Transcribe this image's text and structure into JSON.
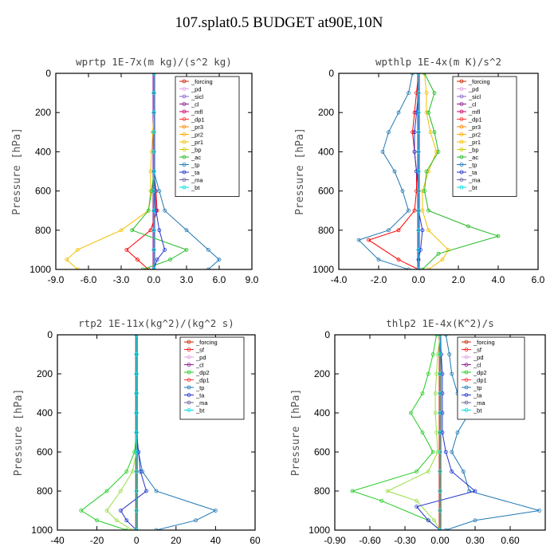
{
  "figure_title": "107.splat0.5  BUDGET at90E,10N",
  "chart_data": [
    {
      "type": "line",
      "title": "wprtp  1E-7x(m kg)/(s^2 kg)",
      "ylabel": "Pressure [hPa]",
      "xlim": [
        -9.0,
        9.0
      ],
      "ylim": [
        0,
        1000
      ],
      "y_inverted": true,
      "x_ticks": [
        "-9.0",
        "-6.0",
        "-3.0",
        "0.0",
        "3.0",
        "6.0",
        "9.0"
      ],
      "y_ticks": [
        "0",
        "200",
        "400",
        "600",
        "800",
        "1000"
      ],
      "legend_position": "top-right",
      "legend": [
        "_forcing",
        "_pd",
        "_sicl",
        "_cl",
        "_mfl",
        "_dp1",
        "_pr3",
        "_pr2",
        "_pr1",
        "_bp",
        "_ac",
        "_tp",
        "_ta",
        "_ma",
        "_bt"
      ],
      "series": [
        {
          "name": "_forcing",
          "color": "#000000",
          "x": [
            0,
            0,
            0,
            0,
            0,
            0,
            0,
            0,
            0,
            0,
            0
          ],
          "y": [
            0,
            100,
            200,
            300,
            400,
            500,
            600,
            700,
            800,
            900,
            1000
          ]
        },
        {
          "name": "_cl",
          "color": "#8b1a8b",
          "x": [
            0,
            0,
            0,
            0,
            0,
            0,
            0,
            0,
            0,
            0,
            0
          ],
          "y": [
            0,
            100,
            200,
            300,
            400,
            500,
            600,
            700,
            800,
            900,
            1000
          ]
        },
        {
          "name": "_dp1",
          "color": "#ff0000",
          "x": [
            0,
            0,
            0,
            0,
            0,
            0,
            0.2,
            0.3,
            -0.3,
            -2.5,
            -1.5,
            -0.5
          ],
          "y": [
            0,
            100,
            200,
            300,
            400,
            500,
            600,
            700,
            800,
            900,
            950,
            1000
          ]
        },
        {
          "name": "_pr1",
          "color": "#f0c000",
          "x": [
            0,
            0,
            0,
            -0.1,
            -0.2,
            -0.3,
            -0.3,
            -0.5,
            -3.0,
            -7.0,
            -8.0,
            -7.0
          ],
          "y": [
            0,
            100,
            200,
            300,
            400,
            500,
            600,
            700,
            800,
            900,
            950,
            1000
          ]
        },
        {
          "name": "_ac",
          "color": "#22bb22",
          "x": [
            0,
            0,
            0,
            0,
            0,
            0,
            -0.2,
            -0.5,
            -2.0,
            3.0,
            1.5,
            -1.0
          ],
          "y": [
            0,
            100,
            200,
            300,
            400,
            500,
            600,
            700,
            800,
            900,
            950,
            1000
          ]
        },
        {
          "name": "_tp",
          "color": "#1f77b4",
          "x": [
            0,
            0,
            0,
            0,
            0,
            0,
            0.5,
            1.0,
            3.0,
            5.0,
            6.0,
            5.0
          ],
          "y": [
            0,
            100,
            200,
            300,
            400,
            500,
            600,
            700,
            800,
            900,
            950,
            1000
          ]
        },
        {
          "name": "_ta",
          "color": "#2233cc",
          "x": [
            0,
            0,
            0,
            0,
            0,
            0,
            0.1,
            0.2,
            0.5,
            1.0,
            0.3,
            0
          ],
          "y": [
            0,
            100,
            200,
            300,
            400,
            500,
            600,
            700,
            800,
            900,
            950,
            1000
          ]
        },
        {
          "name": "_bt",
          "color": "#00ffff",
          "x": [
            0,
            0,
            0,
            0,
            0,
            0,
            0,
            0,
            0,
            0,
            0
          ],
          "y": [
            0,
            100,
            200,
            300,
            400,
            500,
            600,
            700,
            800,
            900,
            1000
          ]
        }
      ]
    },
    {
      "type": "line",
      "title": "wpthlp  1E-4x(m K)/s^2",
      "ylabel": "Pressure [hPa]",
      "xlim": [
        -4.0,
        6.0
      ],
      "ylim": [
        0,
        1000
      ],
      "y_inverted": true,
      "x_ticks": [
        "-4.0",
        "-2.0",
        "0.0",
        "2.0",
        "4.0",
        "6.0"
      ],
      "y_ticks": [
        "0",
        "200",
        "400",
        "600",
        "800",
        "1000"
      ],
      "legend_position": "top-right",
      "legend": [
        "_forcing",
        "_pd",
        "_sicl",
        "_cl",
        "_mfl",
        "_dp1",
        "_pr3",
        "_pr2",
        "_pr1",
        "_bp",
        "_ac",
        "_tp",
        "_ta",
        "_ma",
        "_bt"
      ],
      "series": [
        {
          "name": "_cl",
          "color": "#8b1a8b",
          "x": [
            0,
            0,
            0,
            0,
            0,
            0,
            0,
            0,
            0,
            0,
            0
          ],
          "y": [
            0,
            100,
            200,
            300,
            400,
            500,
            600,
            700,
            800,
            900,
            1000
          ]
        },
        {
          "name": "_dp1",
          "color": "#ff0000",
          "x": [
            0,
            -0.1,
            -0.2,
            -0.3,
            -0.2,
            -0.1,
            -0.1,
            -0.2,
            -1.0,
            -2.5,
            -1.0,
            0
          ],
          "y": [
            0,
            100,
            200,
            300,
            400,
            500,
            600,
            700,
            800,
            850,
            950,
            1000
          ]
        },
        {
          "name": "_pr1",
          "color": "#f0c000",
          "x": [
            0.3,
            0.4,
            0.4,
            0.6,
            0.9,
            0.5,
            0.2,
            0.2,
            0.5,
            1.5,
            1.2,
            0.5
          ],
          "y": [
            0,
            100,
            200,
            300,
            400,
            500,
            600,
            700,
            800,
            900,
            950,
            1000
          ]
        },
        {
          "name": "_ac",
          "color": "#22bb22",
          "x": [
            0.3,
            0.8,
            0.5,
            0.8,
            1.0,
            0.4,
            0.3,
            0.5,
            2.5,
            4.0,
            1.0,
            0.2
          ],
          "y": [
            0,
            100,
            200,
            300,
            400,
            500,
            600,
            700,
            780,
            830,
            920,
            1000
          ]
        },
        {
          "name": "_tp",
          "color": "#1f77b4",
          "x": [
            -0.3,
            -0.5,
            -1.0,
            -1.5,
            -1.8,
            -1.2,
            -0.8,
            -0.5,
            -1.5,
            -3.0,
            -2.0,
            -0.5
          ],
          "y": [
            0,
            100,
            200,
            300,
            400,
            500,
            600,
            700,
            800,
            850,
            950,
            1000
          ]
        },
        {
          "name": "_ta",
          "color": "#2233cc",
          "x": [
            0,
            0,
            -0.1,
            -0.2,
            -0.2,
            -0.1,
            0,
            0,
            0.2,
            0.1,
            0,
            0
          ],
          "y": [
            0,
            100,
            200,
            300,
            400,
            500,
            600,
            700,
            800,
            900,
            950,
            1000
          ]
        },
        {
          "name": "_bt",
          "color": "#00ffff",
          "x": [
            0,
            0,
            0,
            0,
            0,
            0,
            0,
            0,
            0,
            0,
            0
          ],
          "y": [
            0,
            100,
            200,
            300,
            400,
            500,
            600,
            700,
            800,
            900,
            1000
          ]
        }
      ]
    },
    {
      "type": "line",
      "title": "rtp2  1E-11x(kg^2)/(kg^2 s)",
      "ylabel": "Pressure [hPa]",
      "xlim": [
        -40,
        60
      ],
      "ylim": [
        0,
        1000
      ],
      "y_inverted": true,
      "x_ticks": [
        "-40",
        "-20",
        "0",
        "20",
        "40",
        "60"
      ],
      "y_ticks": [
        "0",
        "200",
        "400",
        "600",
        "800",
        "1000"
      ],
      "legend_position": "top-right",
      "legend": [
        "_forcing",
        "_sf",
        "_pd",
        "_cl",
        "_dp2",
        "_dp1",
        "_tp",
        "_ta",
        "_ma",
        "_bt"
      ],
      "series": [
        {
          "name": "_forcing",
          "color": "#cc2200",
          "x": [
            0,
            0,
            0,
            0,
            0,
            0,
            0,
            0,
            0,
            0,
            0
          ],
          "y": [
            0,
            100,
            200,
            300,
            400,
            500,
            600,
            700,
            800,
            900,
            1000
          ]
        },
        {
          "name": "_dp1",
          "color": "#22cc22",
          "x": [
            0,
            0,
            0,
            0,
            0,
            0,
            -1,
            -5,
            -15,
            -28,
            -20,
            -5
          ],
          "y": [
            0,
            100,
            200,
            300,
            400,
            500,
            600,
            700,
            800,
            900,
            950,
            1000
          ]
        },
        {
          "name": "_dp2",
          "color": "#99dd44",
          "x": [
            0,
            0,
            0,
            0,
            0,
            0,
            0,
            -2,
            -8,
            -15,
            -10,
            -2
          ],
          "y": [
            0,
            100,
            200,
            300,
            400,
            500,
            600,
            700,
            800,
            900,
            950,
            1000
          ]
        },
        {
          "name": "_tp",
          "color": "#1f77b4",
          "x": [
            0,
            0,
            0,
            0,
            0,
            0,
            1,
            3,
            10,
            40,
            30,
            10
          ],
          "y": [
            0,
            100,
            200,
            300,
            400,
            500,
            600,
            700,
            800,
            900,
            950,
            1000
          ]
        },
        {
          "name": "_ta",
          "color": "#2233cc",
          "x": [
            0,
            0,
            0,
            0,
            0,
            0,
            1,
            2,
            5,
            -8,
            -5,
            0
          ],
          "y": [
            0,
            100,
            200,
            300,
            400,
            500,
            600,
            700,
            800,
            900,
            950,
            1000
          ]
        },
        {
          "name": "_bt",
          "color": "#00ffff",
          "x": [
            0,
            0,
            0,
            0,
            0,
            0,
            0,
            0,
            0,
            0,
            0
          ],
          "y": [
            0,
            100,
            200,
            300,
            400,
            500,
            600,
            700,
            800,
            900,
            1000
          ]
        }
      ]
    },
    {
      "type": "line",
      "title": "thlp2  1E-4x(K^2)/s",
      "ylabel": "Pressure [hPa]",
      "xlim": [
        -0.9,
        0.9
      ],
      "ylim": [
        0,
        1000
      ],
      "y_inverted": true,
      "x_ticks": [
        "-0.90",
        "-0.60",
        "-0.30",
        "0.00",
        "0.30",
        "0.60"
      ],
      "y_ticks": [
        "0",
        "200",
        "400",
        "600",
        "800",
        "1000"
      ],
      "legend_position": "top-right",
      "legend": [
        "_forcing",
        "_sf",
        "_pd",
        "_cl",
        "_dp2",
        "_dp1",
        "_tp",
        "_ta",
        "_ma",
        "_bt"
      ],
      "series": [
        {
          "name": "_forcing",
          "color": "#cc2200",
          "x": [
            0,
            0,
            0,
            0,
            0,
            0,
            0,
            0,
            0,
            0,
            0
          ],
          "y": [
            0,
            100,
            200,
            300,
            400,
            500,
            600,
            700,
            800,
            900,
            1000
          ]
        },
        {
          "name": "_dp1",
          "color": "#22cc22",
          "x": [
            -0.03,
            -0.06,
            -0.1,
            -0.15,
            -0.25,
            -0.15,
            -0.06,
            -0.2,
            -0.75,
            -0.5,
            -0.1,
            0
          ],
          "y": [
            0,
            100,
            200,
            300,
            400,
            500,
            600,
            700,
            800,
            850,
            950,
            1000
          ]
        },
        {
          "name": "_dp2",
          "color": "#99dd44",
          "x": [
            0,
            -0.02,
            -0.03,
            -0.04,
            -0.04,
            -0.03,
            -0.02,
            -0.1,
            -0.45,
            -0.2,
            -0.05,
            0
          ],
          "y": [
            0,
            100,
            200,
            300,
            400,
            500,
            600,
            700,
            800,
            850,
            950,
            1000
          ]
        },
        {
          "name": "_tp",
          "color": "#1f77b4",
          "x": [
            0.05,
            0.08,
            0.1,
            0.15,
            0.25,
            0.15,
            0.1,
            0.2,
            0.25,
            0.85,
            0.3,
            0.05
          ],
          "y": [
            0,
            100,
            200,
            300,
            400,
            500,
            600,
            700,
            800,
            900,
            950,
            1000
          ]
        },
        {
          "name": "_ta",
          "color": "#2233cc",
          "x": [
            0,
            0.01,
            0.02,
            0.02,
            0.02,
            0.02,
            0.05,
            0.1,
            0.3,
            -0.2,
            -0.1,
            0
          ],
          "y": [
            0,
            100,
            200,
            300,
            400,
            500,
            600,
            700,
            800,
            880,
            950,
            1000
          ]
        },
        {
          "name": "_bt",
          "color": "#00ffff",
          "x": [
            0,
            0,
            0,
            0,
            0,
            0,
            0,
            0,
            0,
            0,
            0
          ],
          "y": [
            0,
            100,
            200,
            300,
            400,
            500,
            600,
            700,
            800,
            900,
            1000
          ]
        }
      ]
    }
  ]
}
